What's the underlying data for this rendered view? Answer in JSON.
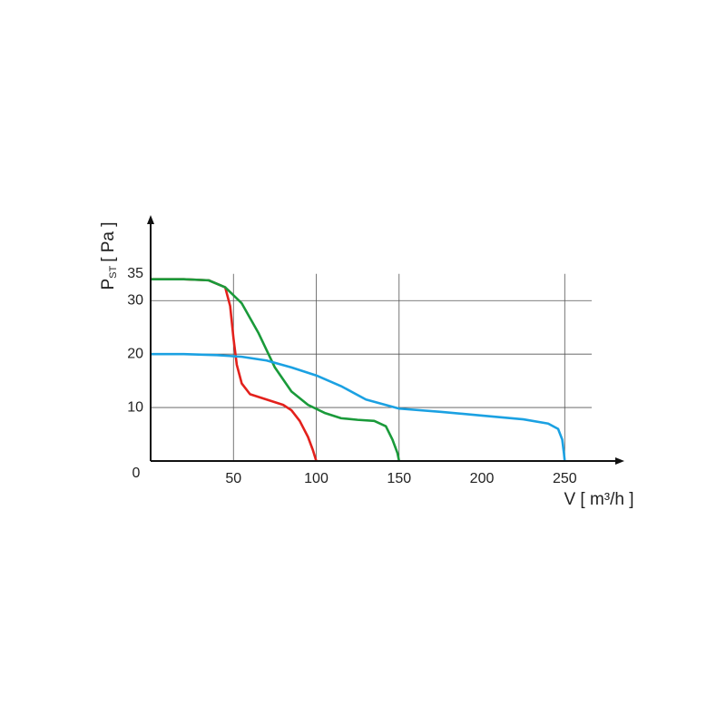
{
  "chart_data": {
    "type": "line",
    "x_label": "V [ m³/h ]",
    "y_label": {
      "main": "P",
      "sub": "ST",
      "unit": "[ Pa ]"
    },
    "xlim": [
      0,
      286
    ],
    "ylim": [
      0,
      46
    ],
    "xticks": [
      0,
      50,
      100,
      150,
      200,
      250
    ],
    "yticks": [
      10,
      20,
      30,
      35
    ],
    "xgrid": [
      50,
      100,
      150,
      250
    ],
    "ygrid": [
      10,
      20,
      30
    ],
    "series": [
      {
        "color": "#e3211c",
        "x": [
          0,
          20,
          35,
          45,
          48,
          50,
          52,
          55,
          60,
          70,
          80,
          85,
          90,
          95,
          98,
          100
        ],
        "values": [
          34,
          34,
          33.8,
          32.5,
          29,
          23,
          18,
          14.5,
          12.5,
          11.5,
          10.5,
          9.5,
          7.5,
          4.5,
          2,
          0
        ]
      },
      {
        "color": "#1a9a3a",
        "x": [
          0,
          20,
          35,
          45,
          55,
          65,
          75,
          85,
          95,
          105,
          115,
          125,
          135,
          142,
          146,
          149,
          150
        ],
        "values": [
          34,
          34,
          33.8,
          32.5,
          29.5,
          24,
          17.5,
          13,
          10.5,
          9,
          8,
          7.7,
          7.5,
          6.5,
          4,
          1.5,
          0
        ]
      },
      {
        "color": "#1ba1e2",
        "x": [
          0,
          20,
          40,
          55,
          70,
          85,
          100,
          115,
          130,
          150,
          175,
          200,
          225,
          240,
          246,
          248.5,
          249.5,
          250
        ],
        "values": [
          20,
          20,
          19.8,
          19.5,
          18.8,
          17.5,
          16,
          14,
          11.5,
          9.8,
          9.2,
          8.5,
          7.8,
          7,
          6,
          4,
          1.5,
          0
        ]
      }
    ]
  }
}
